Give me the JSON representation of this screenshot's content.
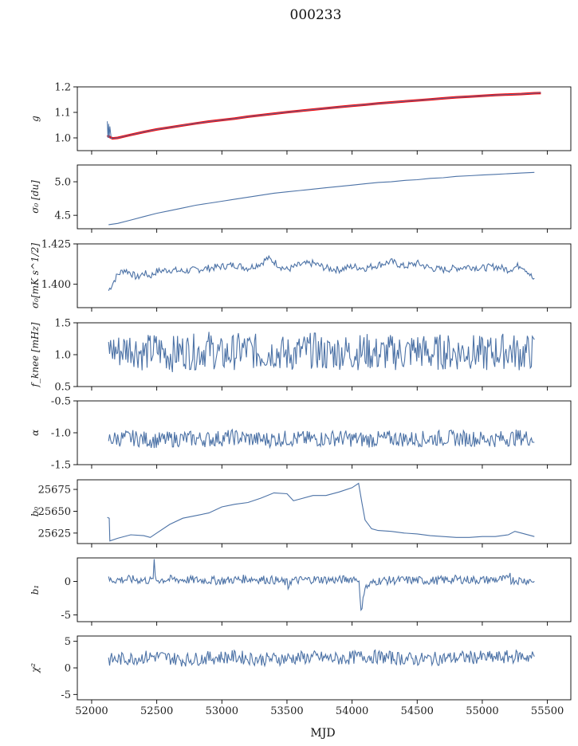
{
  "figure": {
    "title": "000233",
    "xlabel": "MJD",
    "xticks": [
      52000,
      52500,
      53000,
      53500,
      54000,
      54500,
      55000,
      55500
    ],
    "xlim": [
      51890,
      55680
    ]
  },
  "colors": {
    "series": "#4c72a6",
    "fit": "#ff0000",
    "axis": "#000000"
  },
  "chart_data": [
    {
      "type": "line",
      "ylabel": "g",
      "ylim": [
        0.95,
        1.2
      ],
      "yticks": [
        1.0,
        1.1,
        1.2
      ],
      "series": [
        {
          "x": [
            52120,
            52140,
            52160,
            52200,
            52300,
            52400,
            52500,
            52600,
            52700,
            52800,
            52900,
            53000,
            53100,
            53200,
            53300,
            53400,
            53500,
            53600,
            53700,
            53800,
            53900,
            54000,
            54100,
            54200,
            54300,
            54400,
            54500,
            54600,
            54700,
            54800,
            54900,
            55000,
            55100,
            55200,
            55300,
            55400,
            55450
          ],
          "y": [
            1.01,
            1.003,
            0.998,
            1.0,
            1.012,
            1.023,
            1.033,
            1.041,
            1.049,
            1.057,
            1.064,
            1.07,
            1.076,
            1.083,
            1.089,
            1.095,
            1.101,
            1.106,
            1.111,
            1.116,
            1.121,
            1.126,
            1.13,
            1.135,
            1.139,
            1.143,
            1.147,
            1.151,
            1.155,
            1.159,
            1.162,
            1.165,
            1.168,
            1.17,
            1.172,
            1.175,
            1.176
          ]
        },
        {
          "x": [
            52120,
            52125,
            52130,
            52135,
            52140,
            52150,
            52200,
            52300,
            52400,
            52500,
            52600,
            52700,
            52800,
            52900,
            53000,
            53100,
            53200,
            53300,
            53400,
            53500,
            53600,
            53700,
            53800,
            53900,
            54000,
            54100,
            54200,
            54300,
            54400,
            54500,
            54600,
            54700,
            54800,
            54900,
            55000,
            55100,
            55200,
            55300,
            55400,
            55450
          ],
          "y": [
            1.065,
            1.0,
            1.055,
            1.0,
            1.045,
            0.998,
            1.0,
            1.012,
            1.023,
            1.033,
            1.041,
            1.049,
            1.057,
            1.064,
            1.07,
            1.076,
            1.083,
            1.089,
            1.095,
            1.101,
            1.106,
            1.111,
            1.116,
            1.121,
            1.126,
            1.13,
            1.135,
            1.139,
            1.143,
            1.147,
            1.151,
            1.155,
            1.159,
            1.162,
            1.165,
            1.168,
            1.17,
            1.172,
            1.175,
            1.177
          ]
        }
      ],
      "series_colors": [
        "fit",
        "series"
      ],
      "series_widths": [
        3,
        1
      ]
    },
    {
      "type": "line",
      "ylabel": "σ₀ [du]",
      "ylim": [
        4.3,
        5.25
      ],
      "yticks": [
        4.5,
        5.0
      ],
      "series": [
        {
          "x": [
            52130,
            52200,
            52300,
            52400,
            52500,
            52600,
            52700,
            52800,
            52900,
            53000,
            53100,
            53200,
            53300,
            53400,
            53500,
            53600,
            53700,
            53800,
            53900,
            54000,
            54100,
            54200,
            54300,
            54400,
            54500,
            54600,
            54700,
            54800,
            54900,
            55000,
            55100,
            55200,
            55300,
            55400
          ],
          "y": [
            4.36,
            4.38,
            4.43,
            4.48,
            4.53,
            4.57,
            4.61,
            4.65,
            4.68,
            4.71,
            4.74,
            4.77,
            4.8,
            4.83,
            4.85,
            4.87,
            4.89,
            4.91,
            4.93,
            4.95,
            4.97,
            4.99,
            5.0,
            5.02,
            5.03,
            5.05,
            5.06,
            5.08,
            5.09,
            5.1,
            5.11,
            5.12,
            5.13,
            5.14
          ]
        }
      ]
    },
    {
      "type": "line",
      "ylabel": "σ₀[mK s^1/2]",
      "ylim": [
        1.3855,
        1.425
      ],
      "yticks": [
        1.4,
        1.425
      ],
      "series": [
        {
          "x": [
            52130,
            52150,
            52200,
            52250,
            52300,
            52350,
            52400,
            52450,
            52500,
            52600,
            52700,
            52800,
            52900,
            53000,
            53100,
            53200,
            53300,
            53350,
            53400,
            53450,
            53500,
            53600,
            53700,
            53800,
            53900,
            54000,
            54100,
            54200,
            54300,
            54400,
            54500,
            54600,
            54700,
            54800,
            54900,
            55000,
            55100,
            55200,
            55300,
            55350,
            55400
          ],
          "y": [
            1.396,
            1.399,
            1.406,
            1.409,
            1.407,
            1.404,
            1.407,
            1.405,
            1.408,
            1.409,
            1.408,
            1.409,
            1.41,
            1.411,
            1.412,
            1.41,
            1.413,
            1.416,
            1.414,
            1.411,
            1.409,
            1.412,
            1.413,
            1.41,
            1.409,
            1.411,
            1.41,
            1.412,
            1.414,
            1.411,
            1.413,
            1.41,
            1.409,
            1.41,
            1.411,
            1.41,
            1.411,
            1.409,
            1.412,
            1.408,
            1.402
          ]
        }
      ]
    },
    {
      "type": "line",
      "ylabel": "f_knee [mHz]",
      "ylim": [
        0.5,
        1.5
      ],
      "yticks": [
        0.5,
        1.0,
        1.5
      ],
      "series": [
        {
          "x": [
            52130,
            52200,
            52300,
            52400,
            52500,
            52600,
            52700,
            52800,
            52900,
            53000,
            53100,
            53200,
            53300,
            53400,
            53500,
            53600,
            53700,
            53800,
            53900,
            54000,
            54100,
            54200,
            54300,
            54400,
            54500,
            54600,
            54700,
            54800,
            54900,
            55000,
            55100,
            55200,
            55300,
            55400
          ],
          "y": [
            1.1,
            1.05,
            1.12,
            1.02,
            1.08,
            1.0,
            1.06,
            1.04,
            1.1,
            0.98,
            1.05,
            1.08,
            1.02,
            1.06,
            1.0,
            1.04,
            1.07,
            1.01,
            1.05,
            1.03,
            1.06,
            1.0,
            1.04,
            1.02,
            1.08,
            1.01,
            1.05,
            1.03,
            1.06,
            1.0,
            1.04,
            1.07,
            1.02,
            1.05
          ]
        }
      ],
      "noise": 0.18
    },
    {
      "type": "line",
      "ylabel": "α",
      "ylim": [
        -1.5,
        -0.5
      ],
      "yticks": [
        -1.5,
        -1.0,
        -0.5
      ],
      "series": [
        {
          "x": [
            52130,
            52300,
            52500,
            52700,
            52900,
            53100,
            53300,
            53500,
            53700,
            53900,
            54100,
            54300,
            54500,
            54700,
            54900,
            55100,
            55300,
            55400
          ],
          "y": [
            -1.1,
            -1.08,
            -1.12,
            -1.09,
            -1.1,
            -1.07,
            -1.11,
            -1.09,
            -1.1,
            -1.08,
            -1.11,
            -1.09,
            -1.1,
            -1.08,
            -1.09,
            -1.1,
            -1.07,
            -1.09
          ]
        }
      ],
      "noise": 0.08
    },
    {
      "type": "line",
      "ylabel": "b₀",
      "ylim": [
        25613,
        25686
      ],
      "yticks": [
        25625,
        25650,
        25675
      ],
      "series": [
        {
          "x": [
            52120,
            52135,
            52140,
            52200,
            52300,
            52400,
            52450,
            52500,
            52600,
            52700,
            52800,
            52900,
            53000,
            53100,
            53200,
            53300,
            53400,
            53500,
            53550,
            53600,
            53700,
            53800,
            53900,
            54000,
            54050,
            54075,
            54100,
            54150,
            54200,
            54300,
            54400,
            54500,
            54600,
            54700,
            54800,
            54900,
            55000,
            55100,
            55200,
            55250,
            55300,
            55400
          ],
          "y": [
            25643,
            25642,
            25616,
            25619,
            25623,
            25622,
            25620,
            25625,
            25635,
            25642,
            25645,
            25648,
            25655,
            25658,
            25660,
            25665,
            25671,
            25670,
            25662,
            25664,
            25668,
            25668,
            25672,
            25677,
            25682,
            25660,
            25640,
            25630,
            25628,
            25627,
            25625,
            25624,
            25622,
            25621,
            25620,
            25620,
            25621,
            25621,
            25623,
            25627,
            25625,
            25621
          ]
        }
      ]
    },
    {
      "type": "line",
      "ylabel": "b₁",
      "ylim": [
        -6,
        3.5
      ],
      "yticks": [
        -5,
        0
      ],
      "series": [
        {
          "x": [
            52130,
            52300,
            52470,
            52480,
            52490,
            52600,
            52800,
            53000,
            53200,
            53400,
            53500,
            53510,
            53520,
            53700,
            53900,
            54050,
            54070,
            54080,
            54100,
            54150,
            54200,
            54400,
            54600,
            54800,
            55000,
            55200,
            55210,
            55220,
            55400
          ],
          "y": [
            0.2,
            0.3,
            0.1,
            2.8,
            0.2,
            0.3,
            0.2,
            0.1,
            0.4,
            0.2,
            -0.2,
            -1.2,
            0.1,
            0.3,
            0.2,
            0.5,
            -5.2,
            -2.5,
            -1.0,
            -0.3,
            0.1,
            0.2,
            0.1,
            0.3,
            0.2,
            0.3,
            1.8,
            0.2,
            0.1
          ]
        }
      ],
      "noise": 0.4
    },
    {
      "type": "line",
      "ylabel": "χ²",
      "ylim": [
        -6,
        6
      ],
      "yticks": [
        -5,
        0,
        5
      ],
      "series": [
        {
          "x": [
            52130,
            52300,
            52500,
            52700,
            52900,
            53100,
            53300,
            53500,
            53700,
            53900,
            54100,
            54300,
            54500,
            54700,
            54900,
            55100,
            55300,
            55400
          ],
          "y": [
            1.5,
            1.8,
            2.2,
            1.5,
            1.9,
            2.1,
            1.6,
            1.8,
            2.0,
            1.7,
            2.2,
            1.9,
            1.6,
            1.8,
            2.0,
            1.9,
            2.2,
            2.0
          ]
        }
      ],
      "noise": 0.8
    }
  ]
}
